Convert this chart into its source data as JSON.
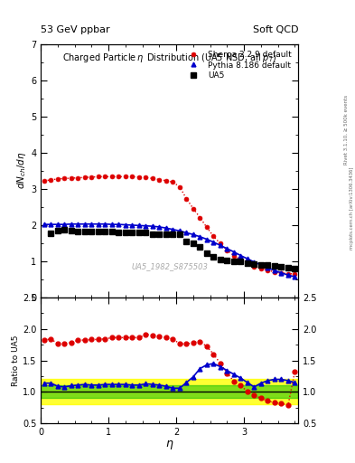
{
  "title_left": "53 GeV ppbar",
  "title_right": "Soft QCD",
  "plot_title": "Charged Particleη Distribution (UA5 NSD, all p_{T})",
  "ylabel_main": "dN_{ch}/dη",
  "ylabel_ratio": "Ratio to UA5",
  "xlabel": "η",
  "watermark": "UA5_1982_S875503",
  "right_label": "Rivet 3.1.10, ≥ 500k events",
  "right_label2": "mcplots.cern.ch [arXiv:1306.3436]",
  "ua5_eta": [
    0.15,
    0.25,
    0.35,
    0.45,
    0.55,
    0.65,
    0.75,
    0.85,
    0.95,
    1.05,
    1.15,
    1.25,
    1.35,
    1.45,
    1.55,
    1.65,
    1.75,
    1.85,
    1.95,
    2.05,
    2.15,
    2.25,
    2.35,
    2.45,
    2.55,
    2.65,
    2.75,
    2.85,
    2.95,
    3.05,
    3.15,
    3.25,
    3.35,
    3.45,
    3.55,
    3.65,
    3.75
  ],
  "ua5_val": [
    1.76,
    1.85,
    1.86,
    1.85,
    1.82,
    1.82,
    1.82,
    1.82,
    1.82,
    1.82,
    1.8,
    1.8,
    1.79,
    1.79,
    1.79,
    1.75,
    1.75,
    1.75,
    1.75,
    1.73,
    1.55,
    1.5,
    1.4,
    1.22,
    1.12,
    1.05,
    1.02,
    1.0,
    0.98,
    0.94,
    0.92,
    0.9,
    0.88,
    0.86,
    0.84,
    0.82,
    0.8
  ],
  "pythia_eta": [
    0.05,
    0.15,
    0.25,
    0.35,
    0.45,
    0.55,
    0.65,
    0.75,
    0.85,
    0.95,
    1.05,
    1.15,
    1.25,
    1.35,
    1.45,
    1.55,
    1.65,
    1.75,
    1.85,
    1.95,
    2.05,
    2.15,
    2.25,
    2.35,
    2.45,
    2.55,
    2.65,
    2.75,
    2.85,
    2.95,
    3.05,
    3.15,
    3.25,
    3.35,
    3.45,
    3.55,
    3.65,
    3.75
  ],
  "pythia_val": [
    2.01,
    2.01,
    2.01,
    2.01,
    2.02,
    2.02,
    2.02,
    2.02,
    2.02,
    2.02,
    2.01,
    2.01,
    2.0,
    1.99,
    1.98,
    1.97,
    1.96,
    1.94,
    1.91,
    1.87,
    1.83,
    1.78,
    1.73,
    1.67,
    1.6,
    1.52,
    1.43,
    1.34,
    1.25,
    1.15,
    1.06,
    0.97,
    0.89,
    0.81,
    0.74,
    0.67,
    0.61,
    0.56
  ],
  "sherpa_eta": [
    0.05,
    0.15,
    0.25,
    0.35,
    0.45,
    0.55,
    0.65,
    0.75,
    0.85,
    0.95,
    1.05,
    1.15,
    1.25,
    1.35,
    1.45,
    1.55,
    1.65,
    1.75,
    1.85,
    1.95,
    2.05,
    2.15,
    2.25,
    2.35,
    2.45,
    2.55,
    2.65,
    2.75,
    2.85,
    2.95,
    3.05,
    3.15,
    3.25,
    3.35,
    3.45,
    3.55,
    3.65,
    3.75
  ],
  "sherpa_val": [
    3.22,
    3.24,
    3.27,
    3.28,
    3.29,
    3.3,
    3.31,
    3.32,
    3.33,
    3.33,
    3.33,
    3.33,
    3.33,
    3.33,
    3.32,
    3.31,
    3.28,
    3.25,
    3.22,
    3.18,
    3.05,
    2.72,
    2.45,
    2.2,
    1.93,
    1.68,
    1.48,
    1.3,
    1.15,
    1.03,
    0.93,
    0.85,
    0.79,
    0.74,
    0.7,
    0.67,
    0.65,
    0.64
  ],
  "pythia_ratio": [
    1.14,
    1.14,
    1.09,
    1.08,
    1.1,
    1.11,
    1.12,
    1.11,
    1.11,
    1.12,
    1.12,
    1.12,
    1.12,
    1.11,
    1.11,
    1.13,
    1.12,
    1.11,
    1.09,
    1.06,
    1.06,
    1.15,
    1.24,
    1.37,
    1.43,
    1.45,
    1.4,
    1.34,
    1.28,
    1.22,
    1.15,
    1.08,
    1.14,
    1.18,
    1.2,
    1.2,
    1.18,
    1.15
  ],
  "sherpa_ratio": [
    1.82,
    1.84,
    1.76,
    1.77,
    1.78,
    1.82,
    1.82,
    1.83,
    1.83,
    1.84,
    1.86,
    1.86,
    1.86,
    1.86,
    1.86,
    1.91,
    1.9,
    1.88,
    1.86,
    1.84,
    1.76,
    1.76,
    1.78,
    1.8,
    1.72,
    1.6,
    1.45,
    1.3,
    1.17,
    1.1,
    1.01,
    0.95,
    0.9,
    0.86,
    0.83,
    0.82,
    0.79,
    1.32
  ],
  "ua5_color": "#000000",
  "pythia_color": "#0000cc",
  "sherpa_color": "#dd0000",
  "green_band": [
    0.9,
    1.1
  ],
  "yellow_band": [
    0.8,
    1.2
  ],
  "ylim_main": [
    0,
    7
  ],
  "ylim_ratio": [
    0.5,
    2.5
  ],
  "xlim": [
    0,
    3.8
  ]
}
